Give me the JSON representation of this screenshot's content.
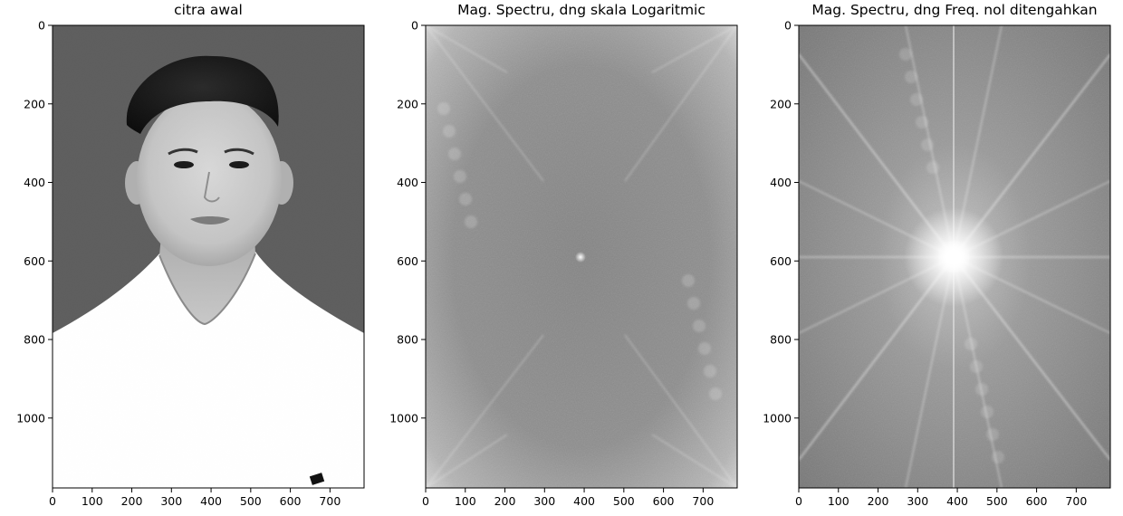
{
  "chart_data": [
    {
      "type": "image",
      "title": "citra awal",
      "x_ticks": [
        0,
        100,
        200,
        300,
        400,
        500,
        600,
        700
      ],
      "y_ticks": [
        0,
        200,
        400,
        600,
        800,
        1000
      ],
      "xlim": [
        0,
        786
      ],
      "ylim": [
        1178,
        0
      ],
      "content": "grayscale portrait photo",
      "colors": {
        "background": "#5e5e5e",
        "shirt": "#ffffff"
      }
    },
    {
      "type": "image",
      "title": "Mag. Spectru, dng skala Logaritmic",
      "x_ticks": [
        0,
        100,
        200,
        300,
        400,
        500,
        600,
        700
      ],
      "y_ticks": [
        0,
        200,
        400,
        600,
        800,
        1000
      ],
      "xlim": [
        0,
        786
      ],
      "ylim": [
        1178,
        0
      ],
      "content": "log magnitude spectrum, bright corners, small spot near center",
      "colors": {
        "base": "#8c8c8c"
      }
    },
    {
      "type": "image",
      "title": "Mag. Spectru, dng Freq. nol ditengahkan",
      "x_ticks": [
        0,
        100,
        200,
        300,
        400,
        500,
        600,
        700
      ],
      "y_ticks": [
        0,
        200,
        400,
        600,
        800,
        1000
      ],
      "xlim": [
        0,
        786
      ],
      "ylim": [
        1178,
        0
      ],
      "content": "centered magnitude spectrum, bright starburst at center",
      "colors": {
        "base": "#7a7a7a"
      }
    }
  ]
}
